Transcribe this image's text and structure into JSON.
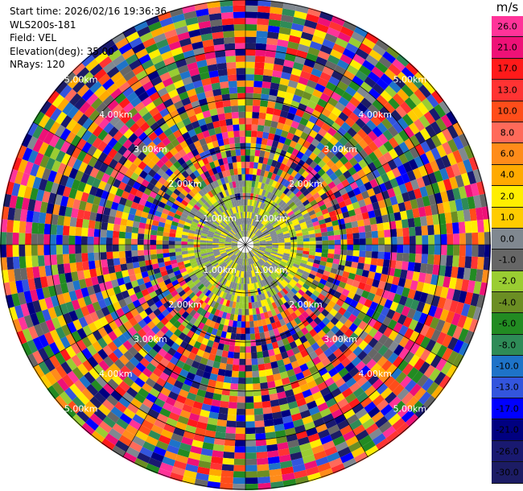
{
  "info": {
    "start_time": "Start time: 2026/02/16 19:36:36",
    "site": "WLS200s-181",
    "field": "Field: VEL",
    "elevation": "Elevation(deg): 35.00",
    "nrays": "NRays: 120"
  },
  "colorbar": {
    "title": "m/s",
    "levels": [
      {
        "label": "26.0",
        "color": "#ff3399"
      },
      {
        "label": "21.0",
        "color": "#ee1177"
      },
      {
        "label": "17.0",
        "color": "#ff1a1a"
      },
      {
        "label": "13.0",
        "color": "#ff3333"
      },
      {
        "label": "10.0",
        "color": "#ff4d1a"
      },
      {
        "label": "8.0",
        "color": "#ff6a5a"
      },
      {
        "label": "6.0",
        "color": "#ff8c1a"
      },
      {
        "label": "4.0",
        "color": "#ffaa00"
      },
      {
        "label": "2.0",
        "color": "#ffee00"
      },
      {
        "label": "1.0",
        "color": "#ffcc00"
      },
      {
        "label": "0.0",
        "color": "#808890"
      },
      {
        "label": "-1.0",
        "color": "#666666"
      },
      {
        "label": "-2.0",
        "color": "#9acd32"
      },
      {
        "label": "-4.0",
        "color": "#6b8e23"
      },
      {
        "label": "-6.0",
        "color": "#228b22"
      },
      {
        "label": "-8.0",
        "color": "#2e8b57"
      },
      {
        "label": "-10.0",
        "color": "#1e73c8"
      },
      {
        "label": "-13.0",
        "color": "#3355dd"
      },
      {
        "label": "-17.0",
        "color": "#0000ff"
      },
      {
        "label": "-21.0",
        "color": "#000080"
      },
      {
        "label": "-26.0",
        "color": "#191970"
      },
      {
        "label": "-30.0",
        "color": "#1c1c64"
      }
    ]
  },
  "range_labels": [
    "1.00km",
    "2.00km",
    "3.00km",
    "4.00km",
    "5.00km"
  ]
}
